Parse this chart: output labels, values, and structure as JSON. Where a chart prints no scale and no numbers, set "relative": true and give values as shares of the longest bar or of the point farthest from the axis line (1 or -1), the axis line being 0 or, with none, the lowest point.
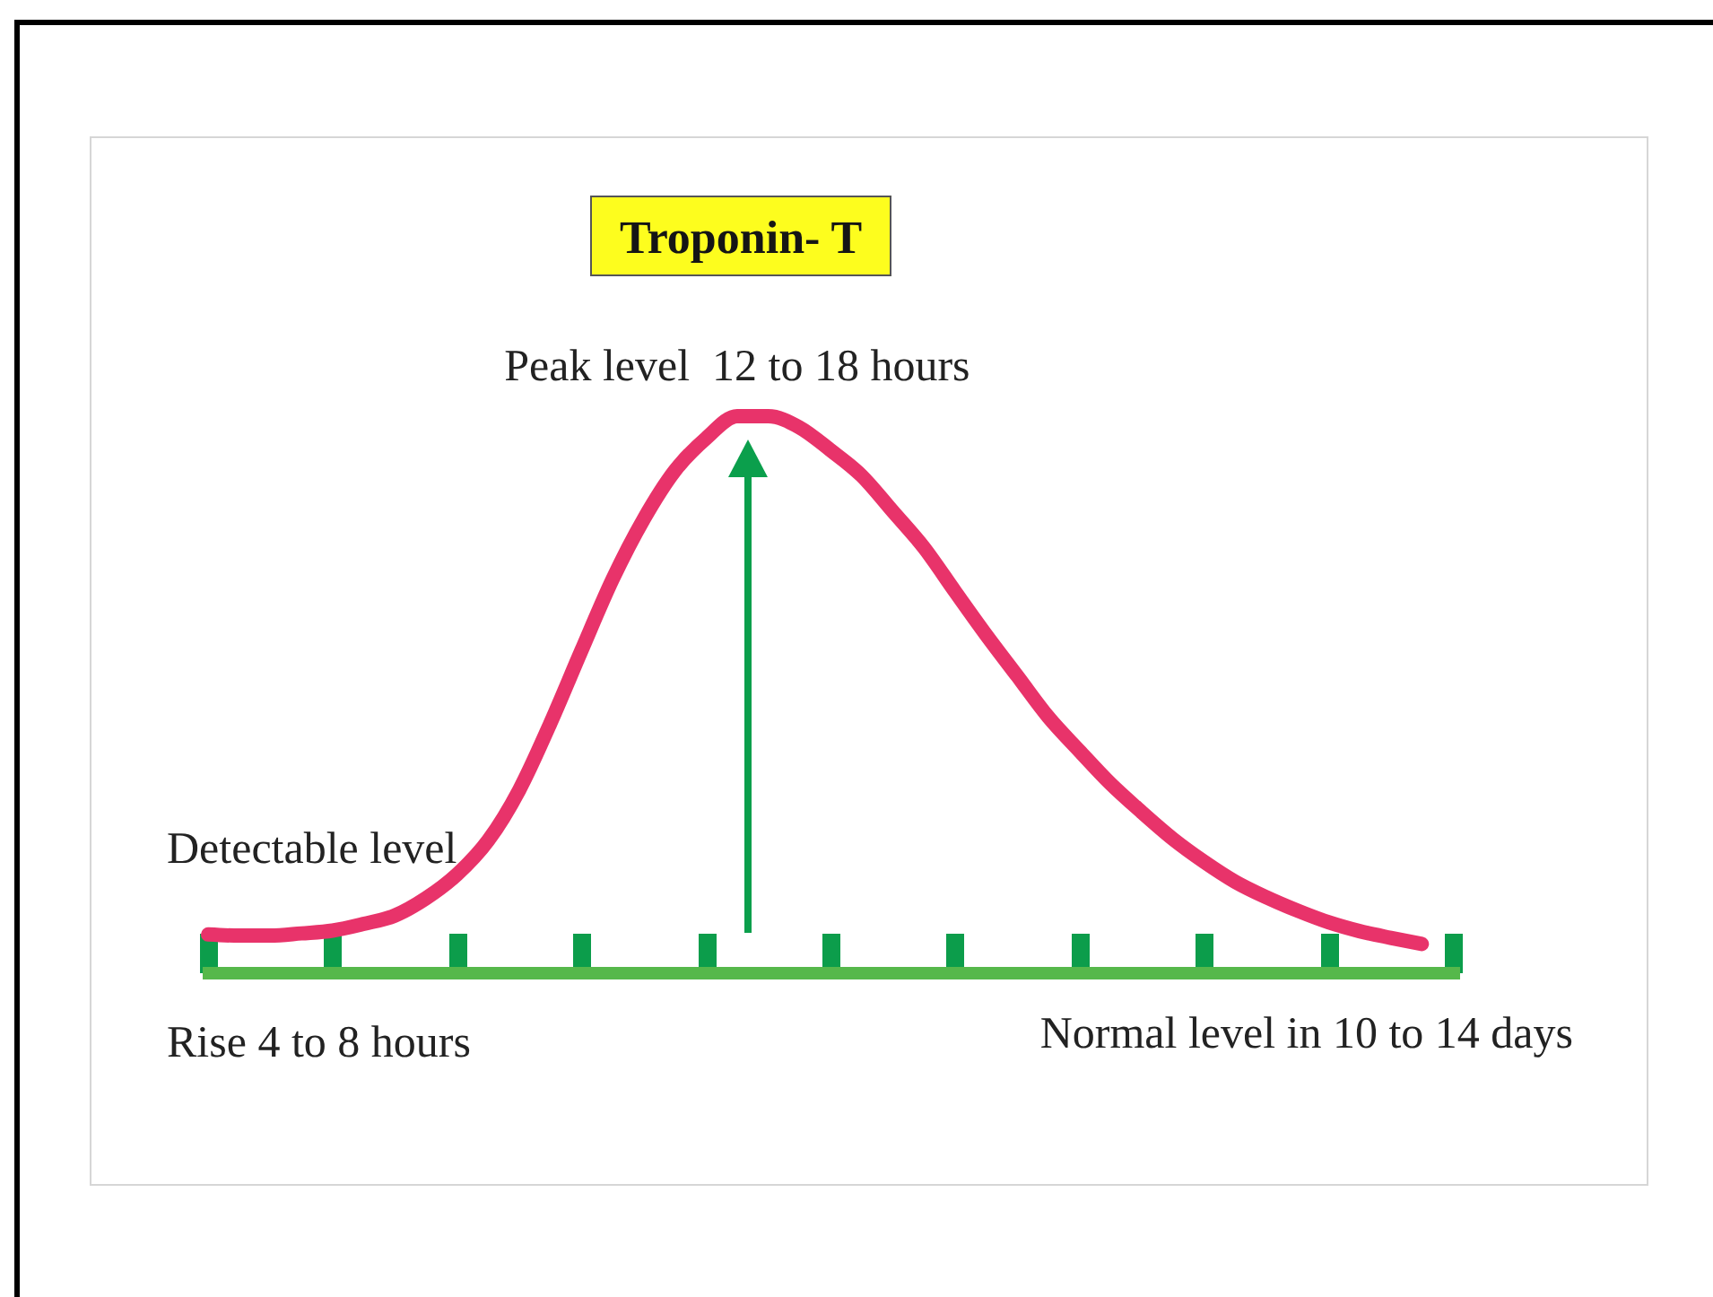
{
  "chart_data": {
    "type": "line",
    "title": "Troponin- T",
    "categories": [
      null,
      null,
      null,
      null,
      null,
      null,
      null,
      null,
      null,
      null,
      null,
      null,
      null,
      null,
      null,
      null,
      null,
      null,
      null,
      null,
      null,
      null,
      null,
      null,
      null,
      null,
      null,
      null,
      null,
      null,
      null,
      null,
      null,
      null,
      null,
      null,
      null,
      null,
      null,
      null,
      null
    ],
    "values": [
      0.068,
      0.066,
      0.066,
      0.07,
      0.075,
      0.087,
      0.102,
      0.133,
      0.176,
      0.237,
      0.328,
      0.448,
      0.579,
      0.707,
      0.815,
      0.902,
      0.96,
      1,
      1,
      0.98,
      0.939,
      0.893,
      0.829,
      0.764,
      0.685,
      0.607,
      0.533,
      0.459,
      0.398,
      0.339,
      0.288,
      0.24,
      0.199,
      0.163,
      0.135,
      0.111,
      0.09,
      0.074,
      0.062,
      0.051,
      null
    ],
    "color": "#e8336a",
    "relative": true,
    "annotations": [
      "Peak level  12 to 18 hours",
      "Detectable level",
      "Rise 4 to 8 hours",
      "Normal level in 10 to 14 days"
    ]
  }
}
